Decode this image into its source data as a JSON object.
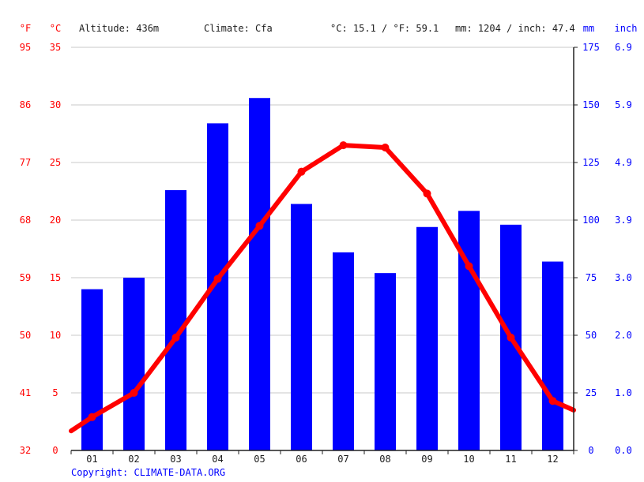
{
  "header": {
    "unit_f": "°F",
    "unit_c": "°C",
    "altitude": "Altitude: 436m",
    "climate": "Climate: Cfa",
    "avg_temp": "°C: 15.1 / °F: 59.1",
    "precip_total": "mm: 1204 / inch: 47.4",
    "unit_mm": "mm",
    "unit_inch": "inch"
  },
  "footer": {
    "copyright": "Copyright: CLIMATE-DATA.ORG"
  },
  "colors": {
    "temperature": "#ff0000",
    "precipitation": "#0000ff",
    "grid": "#c8c8c8",
    "text": "#202020"
  },
  "chart_data": {
    "type": "bar",
    "title": "",
    "grid": true,
    "categories": [
      "01",
      "02",
      "03",
      "04",
      "05",
      "06",
      "07",
      "08",
      "09",
      "10",
      "11",
      "12"
    ],
    "series": [
      {
        "type": "bar",
        "axis": "right",
        "unit": "mm",
        "values": [
          70,
          75,
          113,
          142,
          153,
          107,
          86,
          77,
          97,
          104,
          98,
          82
        ]
      },
      {
        "type": "line",
        "axis": "left",
        "unit": "°C",
        "values": [
          2.9,
          5.0,
          9.8,
          14.9,
          19.5,
          24.2,
          26.5,
          26.3,
          22.3,
          16.0,
          9.8,
          4.3
        ]
      }
    ],
    "y_left_c": {
      "min": 0,
      "max": 35,
      "ticks": [
        "0",
        "5",
        "10",
        "15",
        "20",
        "25",
        "30",
        "35"
      ]
    },
    "y_left_f": {
      "ticks": [
        "32",
        "41",
        "50",
        "59",
        "68",
        "77",
        "86",
        "95"
      ]
    },
    "y_right_mm": {
      "min": 0,
      "max": 175,
      "ticks": [
        "0",
        "25",
        "50",
        "75",
        "100",
        "125",
        "150",
        "175"
      ]
    },
    "y_right_inch": {
      "ticks": [
        "0.0",
        "1.0",
        "2.0",
        "3.0",
        "3.9",
        "4.9",
        "5.9",
        "6.9"
      ]
    },
    "line_edge_start": 1.7,
    "line_edge_end": 3.5
  }
}
